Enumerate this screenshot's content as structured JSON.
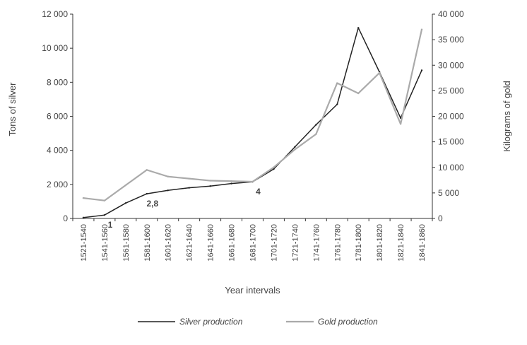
{
  "chart_data": {
    "type": "line",
    "title": "",
    "xlabel": "Year intervals",
    "ylabel_left": "Tons of silver",
    "ylabel_right": "Kilograms of gold",
    "categories": [
      "1521-1540",
      "1541-1560",
      "1561-1580",
      "1581-1600",
      "1601-1620",
      "1621-1640",
      "1641-1660",
      "1661-1680",
      "1681-1700",
      "1701-1720",
      "1721-1740",
      "1741-1760",
      "1761-1780",
      "1781-1800",
      "1801-1820",
      "1821-1840",
      "1841-1860"
    ],
    "ylim_left": [
      0,
      12000
    ],
    "ylim_right": [
      0,
      40000
    ],
    "yticks_left": [
      "0",
      "2 000",
      "4 000",
      "6 000",
      "8 000",
      "10 000",
      "12 000"
    ],
    "yticks_right": [
      "0",
      "5 000",
      "10 000",
      "15 000",
      "20 000",
      "25 000",
      "30 000",
      "35 000",
      "40 000"
    ],
    "series": [
      {
        "name": "Silver production",
        "axis": "left",
        "color": "#222222",
        "values": [
          50,
          200,
          900,
          1450,
          1650,
          1800,
          1900,
          2050,
          2150,
          2900,
          4200,
          5500,
          6700,
          11200,
          8600,
          5900,
          8700
        ]
      },
      {
        "name": "Gold production",
        "axis": "right",
        "color": "#aaaaaa",
        "values": [
          4000,
          3500,
          6500,
          9500,
          8200,
          7800,
          7400,
          7300,
          7200,
          10000,
          13500,
          16500,
          26500,
          24500,
          28500,
          18500,
          37000
        ]
      }
    ],
    "annotations": [
      {
        "text": "1",
        "category_index": 1,
        "series": 0
      },
      {
        "text": "2,8",
        "category_index": 3,
        "series": 0
      },
      {
        "text": "4",
        "category_index": 8,
        "series": 0
      }
    ],
    "legend_position": "bottom",
    "grid": false
  }
}
